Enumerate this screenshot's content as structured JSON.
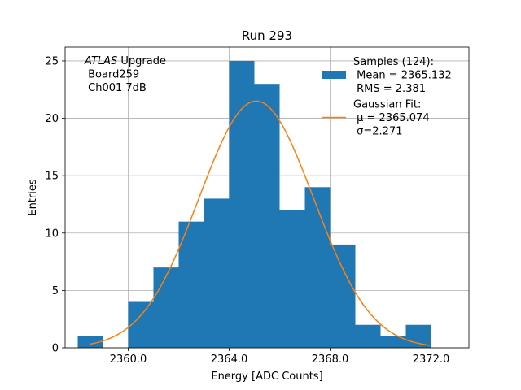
{
  "chart_data": {
    "type": "bar",
    "title": "Run 293",
    "xlabel": "Energy [ADC Counts]",
    "ylabel": "Entries",
    "xlim": [
      2357.5,
      2373.5
    ],
    "ylim": [
      0,
      26.2
    ],
    "grid": true,
    "x_ticks": [
      {
        "value": 2360,
        "label": "2360.0"
      },
      {
        "value": 2364,
        "label": "2364.0"
      },
      {
        "value": 2368,
        "label": "2368.0"
      },
      {
        "value": 2372,
        "label": "2372.0"
      }
    ],
    "y_ticks": [
      {
        "value": 0,
        "label": "0"
      },
      {
        "value": 5,
        "label": "5"
      },
      {
        "value": 10,
        "label": "10"
      },
      {
        "value": 15,
        "label": "15"
      },
      {
        "value": 20,
        "label": "20"
      },
      {
        "value": 25,
        "label": "25"
      }
    ],
    "histogram": {
      "name": "Samples (124):",
      "color": "#1f77b4",
      "bins": [
        {
          "start": 2358,
          "end": 2359,
          "count": 1
        },
        {
          "start": 2359,
          "end": 2360,
          "count": 0
        },
        {
          "start": 2360,
          "end": 2361,
          "count": 4
        },
        {
          "start": 2361,
          "end": 2362,
          "count": 7
        },
        {
          "start": 2362,
          "end": 2363,
          "count": 11
        },
        {
          "start": 2363,
          "end": 2364,
          "count": 13
        },
        {
          "start": 2364,
          "end": 2365,
          "count": 25
        },
        {
          "start": 2365,
          "end": 2366,
          "count": 23
        },
        {
          "start": 2366,
          "end": 2367,
          "count": 12
        },
        {
          "start": 2367,
          "end": 2368,
          "count": 14
        },
        {
          "start": 2368,
          "end": 2369,
          "count": 9
        },
        {
          "start": 2369,
          "end": 2370,
          "count": 2
        },
        {
          "start": 2370,
          "end": 2371,
          "count": 1
        },
        {
          "start": 2371,
          "end": 2372,
          "count": 2
        }
      ]
    },
    "fit": {
      "name": "Gaussian Fit:",
      "color": "#ff7f0e",
      "mu": 2365.074,
      "sigma": 2.271,
      "amplitude": 21.5,
      "x_range": [
        2358.5,
        2371.95
      ]
    },
    "legend": {
      "placement": "upper right",
      "entries": [
        {
          "marker": "patch",
          "lines": [
            "Samples (124):",
            " Mean = 2365.132",
            " RMS = 2.381"
          ]
        },
        {
          "marker": "line",
          "lines": [
            "Gaussian Fit:",
            " μ = 2365.074",
            " σ=2.271"
          ]
        }
      ]
    },
    "annotation": {
      "placement": "upper left",
      "italic_part": "ATLAS",
      "rest": " Upgrade",
      "lines": [
        " Board259",
        " Ch001 7dB"
      ]
    }
  }
}
